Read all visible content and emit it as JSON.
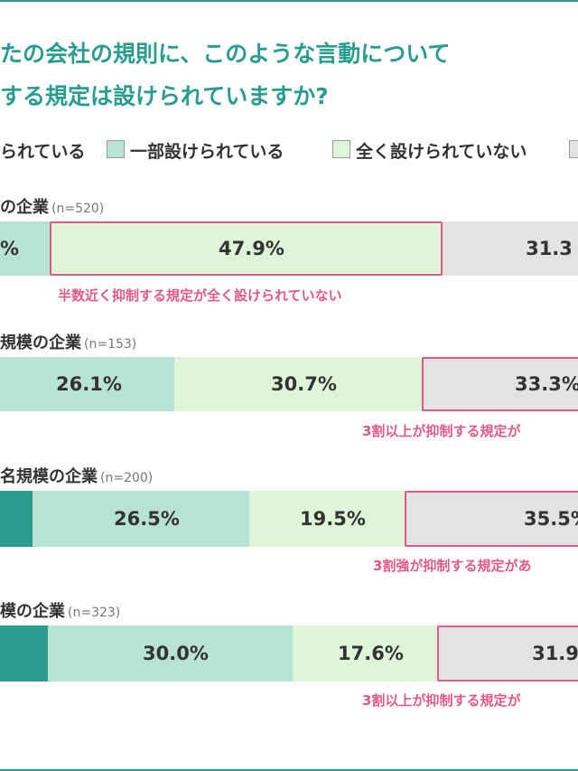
{
  "title": {
    "line1": "たの会社の規則に、このような言動について",
    "line2": "する規定は設けられていますか?"
  },
  "legend": [
    {
      "label": "られている",
      "color": "#2a9d8f",
      "visible_swatch": false
    },
    {
      "label": "一部設けられている",
      "color": "#b8e2d3",
      "visible_swatch": true
    },
    {
      "label": "全く設けられていない",
      "color": "#dff5d8",
      "visible_swatch": true
    },
    {
      "label": "",
      "color": "#e3e3e3",
      "visible_swatch": true
    }
  ],
  "chart_data": {
    "type": "bar",
    "orientation": "horizontal-stacked-percent",
    "series_names": [
      "られている",
      "一部設けられている",
      "全く設けられていない",
      ""
    ],
    "series_colors": [
      "#2a9d8f",
      "#b8e2d3",
      "#dff5d8",
      "#e3e3e3"
    ],
    "groups": [
      {
        "label": "の企業",
        "n": "(n=520)",
        "segments": [
          {
            "series": 1,
            "value": null,
            "label": "%"
          },
          {
            "series": 2,
            "value": 47.9,
            "label": "47.9%"
          },
          {
            "series": 3,
            "value": 31.3,
            "label": "31.3"
          }
        ],
        "highlight_series": 2,
        "annotation": "半数近く抑制する規定が全く設けられていない"
      },
      {
        "label": "規模の企業",
        "n": "(n=153)",
        "segments": [
          {
            "series": 1,
            "value": 26.1,
            "label": "26.1%"
          },
          {
            "series": 2,
            "value": 30.7,
            "label": "30.7%"
          },
          {
            "series": 3,
            "value": 33.3,
            "label": "33.3%"
          }
        ],
        "highlight_series": 3,
        "annotation": "3割以上が抑制する規定が"
      },
      {
        "label": "名規模の企業",
        "n": "(n=200)",
        "segments": [
          {
            "series": 0,
            "value": null,
            "label": ""
          },
          {
            "series": 1,
            "value": 26.5,
            "label": "26.5%"
          },
          {
            "series": 2,
            "value": 19.5,
            "label": "19.5%"
          },
          {
            "series": 3,
            "value": 35.5,
            "label": "35.5%"
          }
        ],
        "highlight_series": 3,
        "annotation": "3割強が抑制する規定があ"
      },
      {
        "label": "模の企業",
        "n": "(n=323)",
        "segments": [
          {
            "series": 0,
            "value": null,
            "label": ""
          },
          {
            "series": 1,
            "value": 30.0,
            "label": "30.0%"
          },
          {
            "series": 2,
            "value": 17.6,
            "label": "17.6%"
          },
          {
            "series": 3,
            "value": 31.9,
            "label": "31.9"
          }
        ],
        "highlight_series": 3,
        "annotation": "3割以上が抑制する規定が"
      }
    ]
  }
}
